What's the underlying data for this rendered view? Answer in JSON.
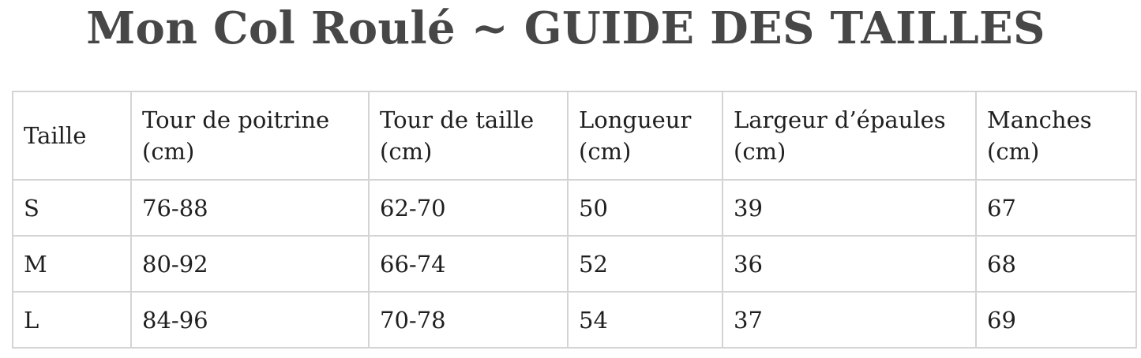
{
  "title": "Mon Col Roulé ~ GUIDE DES TAILLES",
  "table": {
    "headers": [
      [
        "Taille"
      ],
      [
        "Tour de poitrine",
        "(cm)"
      ],
      [
        "Tour de taille",
        "(cm)"
      ],
      [
        "Longueur",
        "(cm)"
      ],
      [
        "Largeur d’épaules",
        "(cm)"
      ],
      [
        "Manches",
        "(cm)"
      ]
    ],
    "rows": [
      [
        "S",
        "76-88",
        "62-70",
        "50",
        "39",
        "67"
      ],
      [
        "M",
        "80-92",
        "66-74",
        "52",
        "36",
        "68"
      ],
      [
        "L",
        "84-96",
        "70-78",
        "54",
        "37",
        "69"
      ]
    ]
  }
}
